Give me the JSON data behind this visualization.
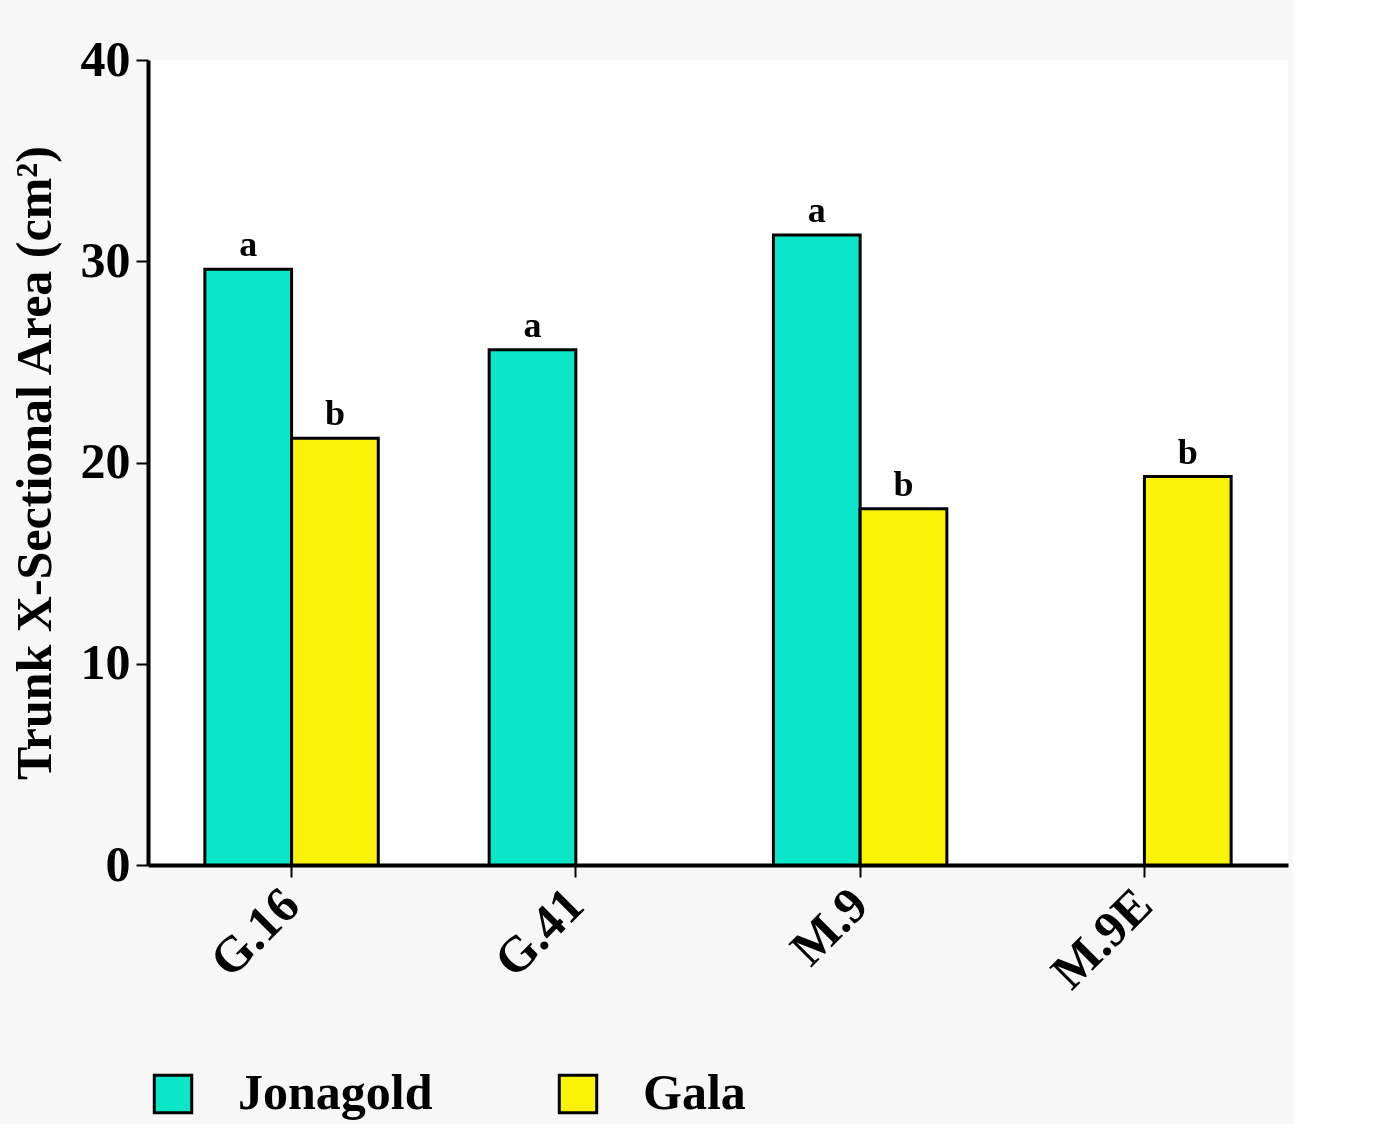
{
  "chart_data": {
    "type": "bar",
    "ylabel": "Trunk X-Sectional Area (cm²)",
    "categories": [
      "G.16",
      "G.41",
      "M.9",
      "M.9E"
    ],
    "series": [
      {
        "name": "Jonagold",
        "color": "#0be5c8",
        "values": [
          29.6,
          25.6,
          31.3,
          null
        ],
        "value_labels": [
          "a",
          "a",
          "a",
          null
        ]
      },
      {
        "name": "Gala",
        "color": "#fbf307",
        "values": [
          21.2,
          null,
          17.7,
          19.3
        ],
        "value_labels": [
          "b",
          null,
          "b",
          "b"
        ]
      }
    ],
    "ylim": [
      0,
      40
    ],
    "yticks": [
      0,
      10,
      20,
      30,
      40
    ],
    "grid": false,
    "legend": "bottom"
  }
}
